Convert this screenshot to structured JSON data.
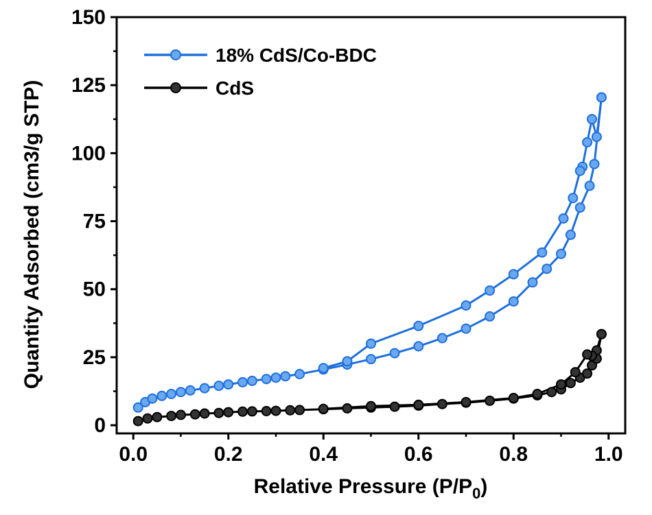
{
  "chart_data": {
    "type": "line",
    "xlabel": "Relative Pressure (P/P",
    "xlabel_sub": "0",
    "xlabel_close": ")",
    "ylabel": "Quantity Adsorbed (cm3/g STP)",
    "xlim": [
      -0.035,
      1.035
    ],
    "ylim": [
      -3,
      150
    ],
    "x_ticks": [
      0.0,
      0.2,
      0.4,
      0.6,
      0.8,
      1.0
    ],
    "x_tick_labels": [
      "0.0",
      "0.2",
      "0.4",
      "0.6",
      "0.8",
      "1.0"
    ],
    "y_ticks": [
      0,
      25,
      50,
      75,
      100,
      125,
      150
    ],
    "y_tick_labels": [
      "0",
      "25",
      "50",
      "75",
      "100",
      "125",
      "150"
    ],
    "grid": false,
    "legend_position": "top-left",
    "series": [
      {
        "name": "18% CdS/Co-BDC",
        "color": "#1e6fdc",
        "marker_fill": "#6aa8f0",
        "branches": [
          {
            "x": [
              0.01,
              0.025,
              0.04,
              0.06,
              0.08,
              0.1,
              0.12,
              0.15,
              0.18,
              0.2,
              0.23,
              0.25,
              0.28,
              0.3,
              0.32,
              0.35,
              0.4,
              0.45,
              0.5,
              0.55,
              0.6,
              0.65,
              0.7,
              0.75,
              0.8,
              0.84,
              0.87,
              0.9,
              0.92,
              0.94,
              0.96,
              0.97,
              0.985
            ],
            "y": [
              6.5,
              8.5,
              9.8,
              10.8,
              11.5,
              12.2,
              12.8,
              13.6,
              14.5,
              15.0,
              15.8,
              16.3,
              17.0,
              17.5,
              18.0,
              18.8,
              20.5,
              22.3,
              24.3,
              26.5,
              29.0,
              32.0,
              35.5,
              40.0,
              45.5,
              52.5,
              57.5,
              63.0,
              70.0,
              80.0,
              88.0,
              96.0,
              120.5
            ]
          },
          {
            "x": [
              0.985,
              0.975,
              0.965,
              0.955,
              0.945,
              0.94,
              0.925,
              0.905,
              0.86,
              0.8,
              0.75,
              0.7,
              0.6,
              0.5,
              0.45,
              0.4
            ],
            "y": [
              120.5,
              106.0,
              112.5,
              104.0,
              95.0,
              93.5,
              83.5,
              76.0,
              63.5,
              55.5,
              49.5,
              44.0,
              36.5,
              30.0,
              23.5,
              21.0
            ]
          }
        ]
      },
      {
        "name": "CdS",
        "color": "#000000",
        "marker_fill": "#333333",
        "branches": [
          {
            "x": [
              0.01,
              0.03,
              0.05,
              0.08,
              0.1,
              0.13,
              0.15,
              0.18,
              0.2,
              0.23,
              0.25,
              0.28,
              0.3,
              0.33,
              0.35,
              0.4,
              0.45,
              0.5,
              0.55,
              0.6,
              0.65,
              0.7,
              0.75,
              0.8,
              0.85,
              0.88,
              0.9,
              0.92,
              0.94,
              0.955,
              0.965,
              0.975,
              0.985
            ],
            "y": [
              1.5,
              2.5,
              3.0,
              3.4,
              3.8,
              4.0,
              4.3,
              4.5,
              4.8,
              5.0,
              5.1,
              5.2,
              5.3,
              5.5,
              5.6,
              5.9,
              6.2,
              6.5,
              6.8,
              7.2,
              7.8,
              8.3,
              9.0,
              9.8,
              11.0,
              12.2,
              13.2,
              15.5,
              17.5,
              19.0,
              22.0,
              24.5,
              33.5
            ]
          },
          {
            "x": [
              0.985,
              0.975,
              0.965,
              0.955,
              0.93,
              0.9,
              0.85,
              0.8,
              0.7,
              0.6,
              0.5,
              0.4
            ],
            "y": [
              33.5,
              27.5,
              25.5,
              26.0,
              19.5,
              15.0,
              11.5,
              10.0,
              8.5,
              7.5,
              7.0,
              6.0
            ]
          }
        ]
      }
    ]
  }
}
